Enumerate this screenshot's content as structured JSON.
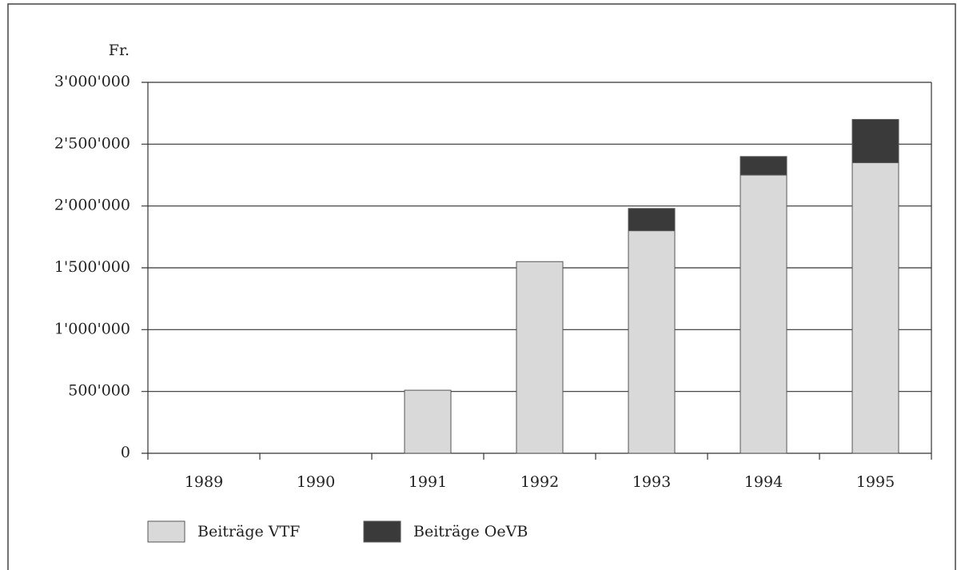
{
  "chart_data": {
    "type": "stacked_bar",
    "y_label": "Fr.",
    "categories": [
      "1989",
      "1990",
      "1991",
      "1992",
      "1993",
      "1994",
      "1995"
    ],
    "series": [
      {
        "name": "Beiträge VTF",
        "color": "#d9d9d9",
        "values": [
          0,
          0,
          510000,
          1550000,
          1800000,
          2250000,
          2350000
        ]
      },
      {
        "name": "Beiträge OeVB",
        "color": "#3a3a3a",
        "values": [
          0,
          0,
          0,
          0,
          180000,
          150000,
          350000
        ]
      }
    ],
    "ylim": [
      0,
      3000000
    ],
    "yticks": [
      0,
      {
        "value": 500000,
        "label": "500'000"
      },
      {
        "value": 1000000,
        "label": "1'000'000"
      },
      {
        "value": 1500000,
        "label": "1'500'000"
      },
      {
        "value": 2000000,
        "label": "2'000'000"
      },
      {
        "value": 2500000,
        "label": "2'500'000"
      },
      {
        "value": 3000000,
        "label": "3'000'000"
      }
    ],
    "grid": true,
    "legend": "bottom"
  }
}
